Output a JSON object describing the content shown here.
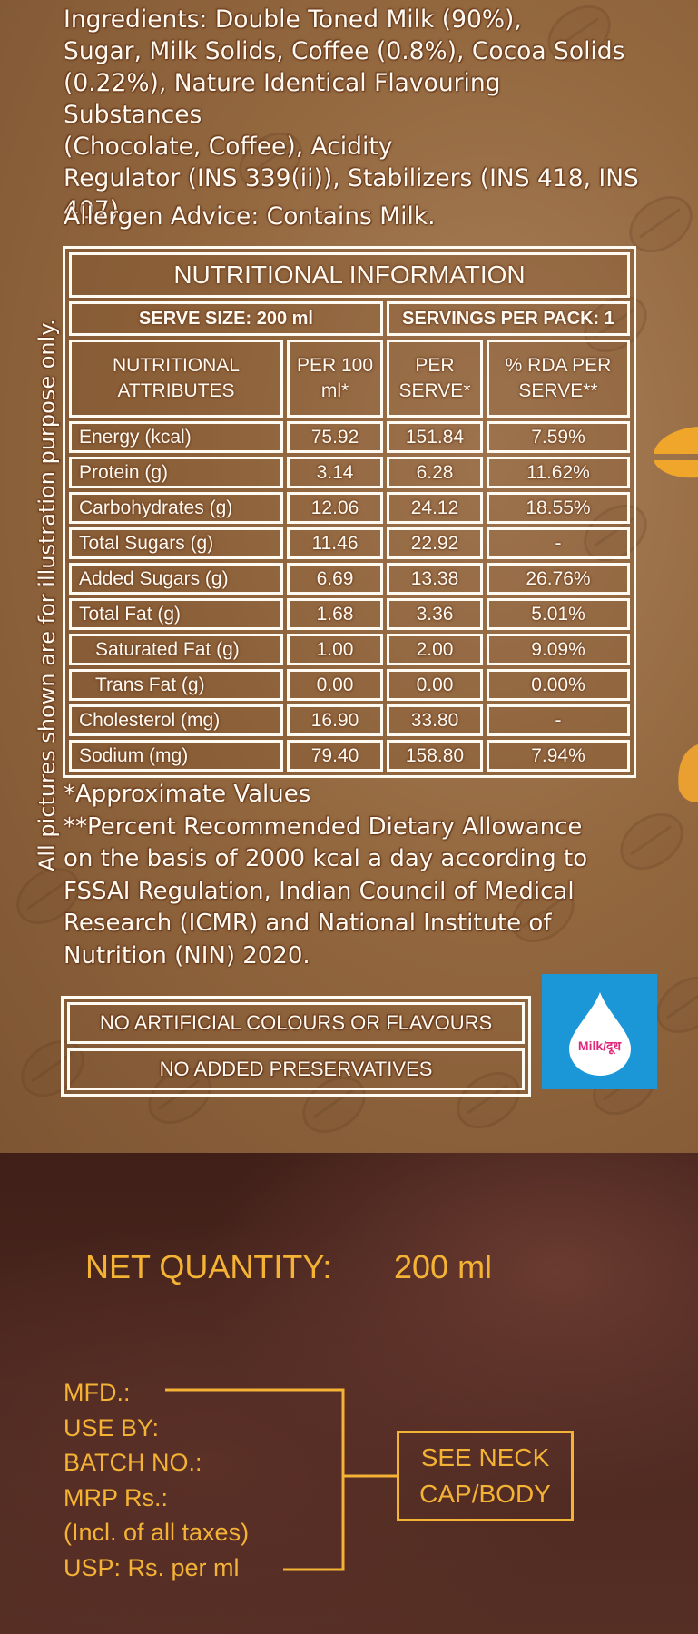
{
  "ingredients": "Ingredients: Double Toned Milk (90%), Sugar, Milk Solids, Coffee (0.8%), Cocoa Solids (0.22%), Nature Identical Flavouring Substances (Chocolate, Coffee), Acidity Regulator (INS 339(ii)), Stabilizers (INS 418, INS 407).",
  "ingredients_lines": [
    "Ingredients: Double Toned Milk (90%),",
    "Sugar, Milk Solids, Coffee (0.8%), Cocoa Solids",
    "(0.22%), Nature Identical Flavouring Substances",
    "(Chocolate, Coffee), Acidity",
    "Regulator (INS 339(ii)), Stabilizers (INS 418, INS",
    "407)."
  ],
  "allergen": "Allergen Advice: Contains Milk.",
  "side_note": "All pictures shown are for illustration purpose only.",
  "nutrition": {
    "title": "NUTRITIONAL INFORMATION",
    "serve_size": "SERVE SIZE: 200 ml",
    "servings": "SERVINGS PER PACK: 1",
    "headers": [
      "NUTRITIONAL ATTRIBUTES",
      "PER 100 ml*",
      "PER SERVE*",
      "% RDA PER SERVE**"
    ],
    "rows": [
      {
        "attr": "Energy (kcal)",
        "per100": "75.92",
        "serve": "151.84",
        "rda": "7.59%"
      },
      {
        "attr": "Protein (g)",
        "per100": "3.14",
        "serve": "6.28",
        "rda": "11.62%"
      },
      {
        "attr": "Carbohydrates (g)",
        "per100": "12.06",
        "serve": "24.12",
        "rda": "18.55%"
      },
      {
        "attr": "Total Sugars (g)",
        "per100": "11.46",
        "serve": "22.92",
        "rda": "-"
      },
      {
        "attr": "Added Sugars (g)",
        "per100": "6.69",
        "serve": "13.38",
        "rda": "26.76%"
      },
      {
        "attr": "Total Fat (g)",
        "per100": "1.68",
        "serve": "3.36",
        "rda": "5.01%"
      },
      {
        "attr": "Saturated Fat (g)",
        "per100": "1.00",
        "serve": "2.00",
        "rda": "9.09%"
      },
      {
        "attr": "Trans Fat (g)",
        "per100": "0.00",
        "serve": "0.00",
        "rda": "0.00%"
      },
      {
        "attr": "Cholesterol (mg)",
        "per100": "16.90",
        "serve": "33.80",
        "rda": "-"
      },
      {
        "attr": "Sodium (mg)",
        "per100": "79.40",
        "serve": "158.80",
        "rda": "7.94%"
      }
    ]
  },
  "footnotes": [
    "*Approximate Values",
    "**Percent Recommended Dietary Allowance",
    "on the basis of 2000 kcal a day according to",
    "FSSAI Regulation, Indian Council of Medical",
    "Research (ICMR) and National Institute of",
    "Nutrition (NIN) 2020."
  ],
  "claims": [
    "NO ARTIFICIAL COLOURS OR FLAVOURS",
    "NO ADDED PRESERVATIVES"
  ],
  "milk_logo_label": "Milk/दूध",
  "net_quantity": {
    "label": "NET QUANTITY:",
    "value": "200 ml"
  },
  "mfd_fields": [
    "MFD.:",
    "USE BY:",
    "BATCH NO.:",
    "MRP Rs.:",
    "(Incl. of all taxes)",
    "USP: Rs. per ml"
  ],
  "see_neck": [
    "SEE NECK",
    "CAP/BODY"
  ],
  "colors": {
    "background": "#93683f",
    "text": "#fffaf2",
    "accent_yellow": "#f4b335",
    "milk_badge": "#1b96d6",
    "milk_label": "#e0287b"
  }
}
